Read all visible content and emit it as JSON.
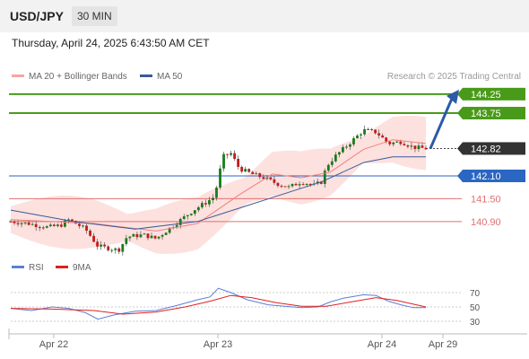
{
  "header": {
    "symbol": "USD/JPY",
    "timeframe": "30 MIN"
  },
  "datetime": "Thursday, April 24, 2025 6:43:50 AM CET",
  "legend": {
    "ma20_label": "MA 20 + Bollinger Bands",
    "ma50_label": "MA 50",
    "credit": "Research © 2025 Trading Central",
    "colors": {
      "ma20": "#f4a6a0",
      "ma50": "#3a5a9a"
    }
  },
  "rsi_legend": {
    "rsi_label": "RSI",
    "ma_label": "9MA",
    "colors": {
      "rsi": "#5b7fd6",
      "ma": "#e02020"
    }
  },
  "chart_data": [
    {
      "type": "candlestick",
      "title": "USD/JPY 30 MIN",
      "x_ticks": [
        "Apr 22",
        "Apr 23",
        "Apr 24",
        "Apr 29"
      ],
      "y_range": [
        140.0,
        144.6
      ],
      "key_levels": [
        {
          "value": 144.25,
          "label": "144.25",
          "kind": "resistance",
          "color": "#4a9a1a"
        },
        {
          "value": 143.75,
          "label": "143.75",
          "kind": "resistance",
          "color": "#4a9a1a"
        },
        {
          "value": 142.82,
          "label": "142.82",
          "kind": "last",
          "color": "#333333"
        },
        {
          "value": 142.1,
          "label": "142.10",
          "kind": "pivot",
          "color": "#2a66c2"
        },
        {
          "value": 141.5,
          "label": "141.50",
          "kind": "support",
          "color": "#e07070"
        },
        {
          "value": 140.9,
          "label": "140.90",
          "kind": "support",
          "color": "#e07070"
        }
      ],
      "price_path": [
        [
          0,
          140.9
        ],
        [
          4,
          140.85
        ],
        [
          9,
          140.75
        ],
        [
          12,
          140.8
        ],
        [
          14,
          140.95
        ],
        [
          18,
          140.7
        ],
        [
          21,
          140.25
        ],
        [
          26,
          140.15
        ],
        [
          28,
          140.5
        ],
        [
          32,
          140.55
        ],
        [
          35,
          140.45
        ],
        [
          38,
          140.7
        ],
        [
          41,
          140.95
        ],
        [
          44,
          141.2
        ],
        [
          47,
          141.4
        ],
        [
          49,
          141.55
        ],
        [
          50,
          142.0
        ],
        [
          51,
          142.6
        ],
        [
          53,
          142.7
        ],
        [
          55,
          142.3
        ],
        [
          58,
          142.15
        ],
        [
          61,
          142.05
        ],
        [
          64,
          141.9
        ],
        [
          67,
          141.8
        ],
        [
          70,
          141.95
        ],
        [
          73,
          141.85
        ],
        [
          75,
          141.95
        ],
        [
          76,
          142.35
        ],
        [
          78,
          142.6
        ],
        [
          81,
          142.9
        ],
        [
          85,
          143.3
        ],
        [
          88,
          143.25
        ],
        [
          91,
          142.95
        ],
        [
          94,
          143.0
        ],
        [
          97,
          142.85
        ],
        [
          100,
          142.82
        ]
      ],
      "ma20_path": [
        [
          0,
          140.95
        ],
        [
          20,
          140.85
        ],
        [
          35,
          140.65
        ],
        [
          45,
          140.85
        ],
        [
          55,
          141.6
        ],
        [
          63,
          142.15
        ],
        [
          70,
          142.05
        ],
        [
          77,
          142.2
        ],
        [
          85,
          142.8
        ],
        [
          92,
          143.05
        ],
        [
          100,
          142.95
        ]
      ],
      "ma50_path": [
        [
          0,
          141.2
        ],
        [
          15,
          140.9
        ],
        [
          30,
          140.7
        ],
        [
          45,
          140.9
        ],
        [
          55,
          141.25
        ],
        [
          65,
          141.6
        ],
        [
          75,
          141.95
        ],
        [
          85,
          142.45
        ],
        [
          92,
          142.6
        ],
        [
          100,
          142.6
        ]
      ],
      "forecast_arrow": {
        "from": 142.82,
        "to": 144.25
      }
    },
    {
      "type": "line",
      "title": "RSI",
      "y_ticks": [
        30,
        50,
        70
      ],
      "y_range": [
        20,
        80
      ],
      "series": [
        {
          "name": "RSI",
          "points": [
            [
              0,
              48
            ],
            [
              5,
              45
            ],
            [
              10,
              50
            ],
            [
              14,
              48
            ],
            [
              18,
              42
            ],
            [
              21,
              33
            ],
            [
              25,
              39
            ],
            [
              30,
              44
            ],
            [
              35,
              45
            ],
            [
              40,
              52
            ],
            [
              45,
              60
            ],
            [
              48,
              64
            ],
            [
              50,
              76
            ],
            [
              53,
              70
            ],
            [
              57,
              60
            ],
            [
              62,
              53
            ],
            [
              66,
              51
            ],
            [
              70,
              49
            ],
            [
              74,
              50
            ],
            [
              77,
              57
            ],
            [
              80,
              62
            ],
            [
              85,
              67
            ],
            [
              88,
              66
            ],
            [
              91,
              58
            ],
            [
              94,
              53
            ],
            [
              97,
              49
            ],
            [
              100,
              49
            ]
          ]
        },
        {
          "name": "9MA",
          "points": [
            [
              0,
              48
            ],
            [
              10,
              47
            ],
            [
              20,
              45
            ],
            [
              27,
              40
            ],
            [
              35,
              43
            ],
            [
              42,
              50
            ],
            [
              48,
              58
            ],
            [
              53,
              66
            ],
            [
              58,
              63
            ],
            [
              64,
              56
            ],
            [
              70,
              51
            ],
            [
              76,
              51
            ],
            [
              82,
              57
            ],
            [
              88,
              63
            ],
            [
              93,
              59
            ],
            [
              100,
              50
            ]
          ]
        }
      ]
    }
  ]
}
